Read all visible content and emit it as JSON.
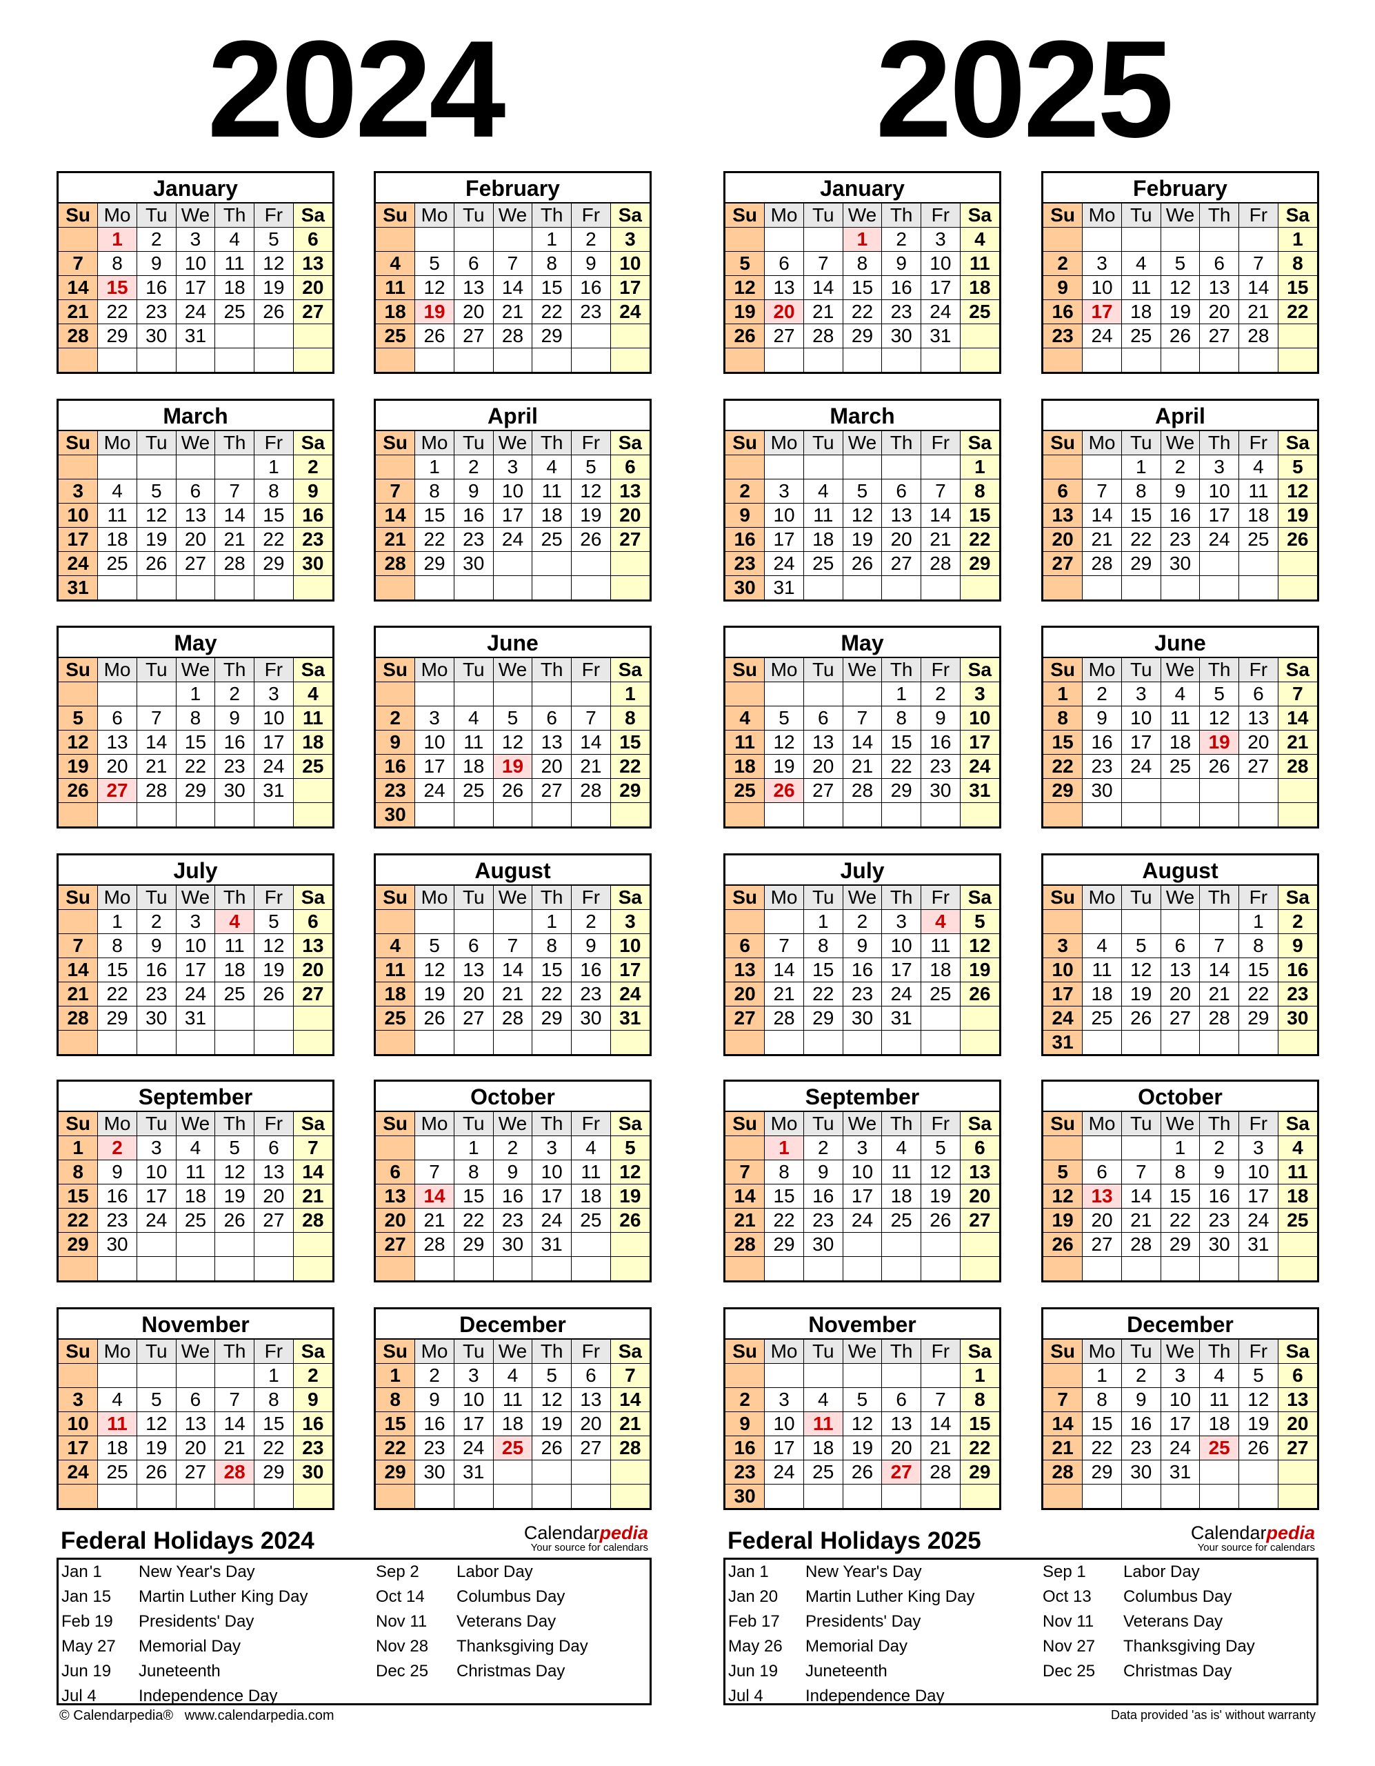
{
  "weekdays": [
    "Su",
    "Mo",
    "Tu",
    "We",
    "Th",
    "Fr",
    "Sa"
  ],
  "colors": {
    "sunday": "#ffcc99",
    "saturday": "#ffffcc",
    "header": "#e8e8e8",
    "holiday_bg": "#ffdddd",
    "holiday_text": "#cc0000"
  },
  "years": [
    {
      "year": "2024",
      "months": [
        {
          "name": "January",
          "first_weekday": 1,
          "days": 31,
          "holidays": [
            1,
            15
          ]
        },
        {
          "name": "February",
          "first_weekday": 4,
          "days": 29,
          "holidays": [
            19
          ]
        },
        {
          "name": "March",
          "first_weekday": 5,
          "days": 31,
          "holidays": []
        },
        {
          "name": "April",
          "first_weekday": 1,
          "days": 30,
          "holidays": []
        },
        {
          "name": "May",
          "first_weekday": 3,
          "days": 31,
          "holidays": [
            27
          ]
        },
        {
          "name": "June",
          "first_weekday": 6,
          "days": 30,
          "holidays": [
            19
          ]
        },
        {
          "name": "July",
          "first_weekday": 1,
          "days": 31,
          "holidays": [
            4
          ]
        },
        {
          "name": "August",
          "first_weekday": 4,
          "days": 31,
          "holidays": []
        },
        {
          "name": "September",
          "first_weekday": 0,
          "days": 30,
          "holidays": [
            2
          ]
        },
        {
          "name": "October",
          "first_weekday": 2,
          "days": 31,
          "holidays": [
            14
          ]
        },
        {
          "name": "November",
          "first_weekday": 5,
          "days": 30,
          "holidays": [
            11,
            28
          ]
        },
        {
          "name": "December",
          "first_weekday": 0,
          "days": 31,
          "holidays": [
            25
          ]
        }
      ],
      "holidays_title": "Federal Holidays 2024",
      "holidays": [
        {
          "date": "Jan 1",
          "name": "New Year's Day"
        },
        {
          "date": "Jan 15",
          "name": "Martin Luther King Day"
        },
        {
          "date": "Feb 19",
          "name": "Presidents' Day"
        },
        {
          "date": "May 27",
          "name": "Memorial Day"
        },
        {
          "date": "Jun 19",
          "name": "Juneteenth"
        },
        {
          "date": "Jul 4",
          "name": "Independence Day"
        },
        {
          "date": "Sep 2",
          "name": "Labor Day"
        },
        {
          "date": "Oct 14",
          "name": "Columbus Day"
        },
        {
          "date": "Nov 11",
          "name": "Veterans Day"
        },
        {
          "date": "Nov 28",
          "name": "Thanksgiving Day"
        },
        {
          "date": "Dec 25",
          "name": "Christmas Day"
        }
      ]
    },
    {
      "year": "2025",
      "months": [
        {
          "name": "January",
          "first_weekday": 3,
          "days": 31,
          "holidays": [
            1,
            20
          ]
        },
        {
          "name": "February",
          "first_weekday": 6,
          "days": 28,
          "holidays": [
            17
          ]
        },
        {
          "name": "March",
          "first_weekday": 6,
          "days": 31,
          "holidays": []
        },
        {
          "name": "April",
          "first_weekday": 2,
          "days": 30,
          "holidays": []
        },
        {
          "name": "May",
          "first_weekday": 4,
          "days": 31,
          "holidays": [
            26
          ]
        },
        {
          "name": "June",
          "first_weekday": 0,
          "days": 30,
          "holidays": [
            19
          ]
        },
        {
          "name": "July",
          "first_weekday": 2,
          "days": 31,
          "holidays": [
            4
          ]
        },
        {
          "name": "August",
          "first_weekday": 5,
          "days": 31,
          "holidays": []
        },
        {
          "name": "September",
          "first_weekday": 1,
          "days": 30,
          "holidays": [
            1
          ]
        },
        {
          "name": "October",
          "first_weekday": 3,
          "days": 31,
          "holidays": [
            13
          ]
        },
        {
          "name": "November",
          "first_weekday": 6,
          "days": 30,
          "holidays": [
            11,
            27
          ]
        },
        {
          "name": "December",
          "first_weekday": 1,
          "days": 31,
          "holidays": [
            25
          ]
        }
      ],
      "holidays_title": "Federal Holidays 2025",
      "holidays": [
        {
          "date": "Jan 1",
          "name": "New Year's Day"
        },
        {
          "date": "Jan 20",
          "name": "Martin Luther King Day"
        },
        {
          "date": "Feb 17",
          "name": "Presidents' Day"
        },
        {
          "date": "May 26",
          "name": "Memorial Day"
        },
        {
          "date": "Jun 19",
          "name": "Juneteenth"
        },
        {
          "date": "Jul 4",
          "name": "Independence Day"
        },
        {
          "date": "Sep 1",
          "name": "Labor Day"
        },
        {
          "date": "Oct 13",
          "name": "Columbus Day"
        },
        {
          "date": "Nov 11",
          "name": "Veterans Day"
        },
        {
          "date": "Nov 27",
          "name": "Thanksgiving Day"
        },
        {
          "date": "Dec 25",
          "name": "Christmas Day"
        }
      ]
    }
  ],
  "logo": {
    "brand_a": "Calendar",
    "brand_b": "pedia",
    "tagline": "Your source for calendars"
  },
  "footer": {
    "left": "© Calendarpedia®   www.calendarpedia.com",
    "right": "Data provided 'as is' without warranty"
  }
}
